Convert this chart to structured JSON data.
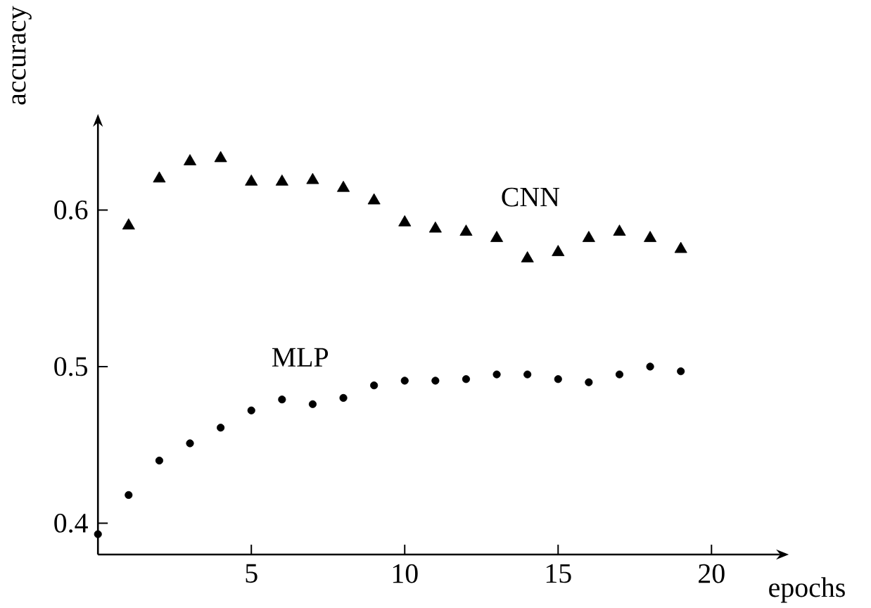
{
  "chart_data": {
    "type": "scatter",
    "xlabel": "epochs",
    "ylabel": "accuracy",
    "x": [
      0,
      1,
      2,
      3,
      4,
      5,
      6,
      7,
      8,
      9,
      10,
      11,
      12,
      13,
      14,
      15,
      16,
      17,
      18,
      19
    ],
    "series": [
      {
        "name": "CNN",
        "color": "#000000",
        "marker": "triangle",
        "x": [
          1,
          2,
          3,
          4,
          5,
          6,
          7,
          8,
          9,
          10,
          11,
          12,
          13,
          14,
          15,
          16,
          17,
          18,
          19
        ],
        "values": [
          0.59,
          0.62,
          0.631,
          0.633,
          0.618,
          0.618,
          0.619,
          0.614,
          0.606,
          0.592,
          0.588,
          0.586,
          0.582,
          0.569,
          0.573,
          0.582,
          0.586,
          0.582,
          0.575
        ]
      },
      {
        "name": "MLP",
        "color": "#000000",
        "marker": "circle",
        "values": [
          0.393,
          0.418,
          0.44,
          0.451,
          0.461,
          0.472,
          0.479,
          0.476,
          0.48,
          0.488,
          0.491,
          0.491,
          0.492,
          0.495,
          0.495,
          0.492,
          0.49,
          0.495,
          0.5,
          0.497
        ]
      }
    ],
    "xlim": [
      0,
      22.2
    ],
    "ylim": [
      0.38,
      0.655
    ],
    "xticks": [
      5,
      10,
      15,
      20
    ],
    "yticks": [
      0.4,
      0.5,
      0.6
    ],
    "grid": false,
    "legend": false
  }
}
